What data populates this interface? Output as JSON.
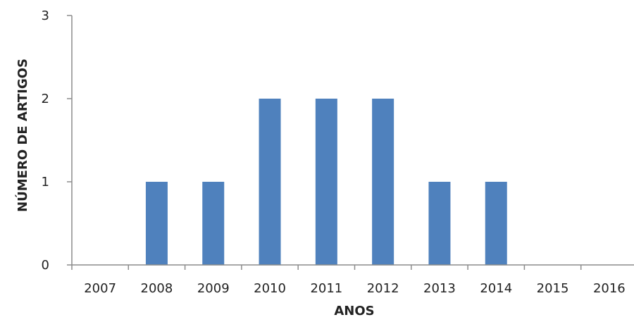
{
  "chart_data": {
    "type": "bar",
    "categories": [
      "2007",
      "2008",
      "2009",
      "2010",
      "2011",
      "2012",
      "2013",
      "2014",
      "2015",
      "2016"
    ],
    "values": [
      0,
      1,
      1,
      2,
      2,
      2,
      1,
      1,
      0,
      0
    ],
    "title": "",
    "xlabel": "ANOS",
    "ylabel": "NÚMERO DE ARTIGOS",
    "ylim": [
      0,
      3
    ],
    "yticks": [
      0,
      1,
      2,
      3
    ],
    "grid": false,
    "legend": "none",
    "bar_color": "#4f81bd"
  }
}
